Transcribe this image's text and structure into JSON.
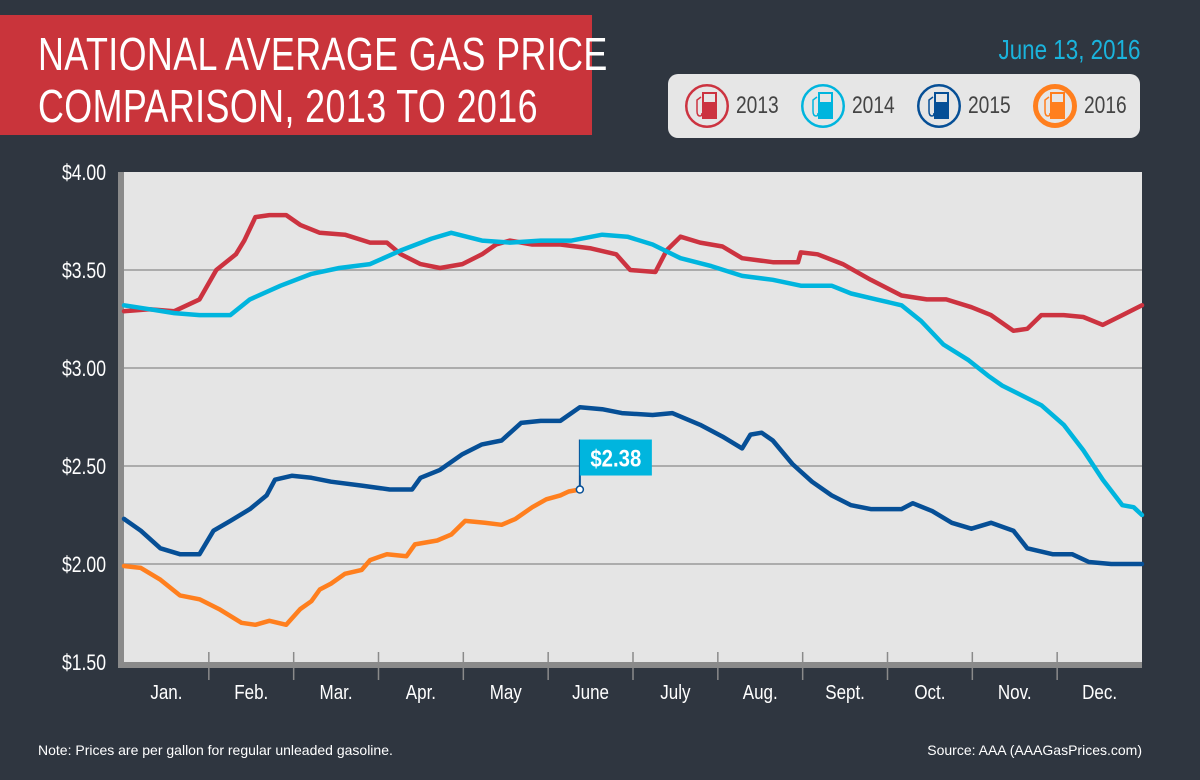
{
  "header": {
    "title_line1": "NATIONAL AVERAGE GAS PRICE",
    "title_line2": "COMPARISON, 2013 TO 2016",
    "date": "June 13, 2016"
  },
  "legend": [
    {
      "label": "2013",
      "color": "#cc3340",
      "icon": "gas-pump-icon"
    },
    {
      "label": "2014",
      "color": "#00b5de",
      "icon": "gas-pump-icon"
    },
    {
      "label": "2015",
      "color": "#064f96",
      "icon": "gas-pump-icon"
    },
    {
      "label": "2016",
      "color": "#ff7f1e",
      "icon": "gas-pump-icon"
    }
  ],
  "footer": {
    "note": "Note: Prices are per gallon for regular unleaded gasoline.",
    "source": "Source: AAA (AAAGasPrices.com)"
  },
  "chart_data": {
    "type": "line",
    "title": "NATIONAL AVERAGE GAS PRICE COMPARISON, 2013 TO 2016",
    "xlabel": "",
    "ylabel": "",
    "ylim": [
      1.5,
      4.0
    ],
    "yticks": [
      "$4.00",
      "$3.50",
      "$3.00",
      "$2.50",
      "$2.00",
      "$1.50"
    ],
    "ytick_values": [
      4.0,
      3.5,
      3.0,
      2.5,
      2.0,
      1.5
    ],
    "xticks": [
      "Jan.",
      "Feb.",
      "Mar.",
      "Apr.",
      "May",
      "June",
      "July",
      "Aug.",
      "Sept.",
      "Oct.",
      "Nov.",
      "Dec."
    ],
    "grid": "horizontal",
    "legend_position": "top-right",
    "annotation": {
      "series": "2016",
      "date": "06-13",
      "value": 2.38,
      "label": "$2.38",
      "color": "#00b5de"
    },
    "series": [
      {
        "name": "2013",
        "color": "#cc3340",
        "points": [
          [
            "01-01",
            3.29
          ],
          [
            "01-10",
            3.3
          ],
          [
            "01-19",
            3.29
          ],
          [
            "01-28",
            3.35
          ],
          [
            "02-03",
            3.5
          ],
          [
            "02-10",
            3.58
          ],
          [
            "02-13",
            3.65
          ],
          [
            "02-17",
            3.77
          ],
          [
            "02-22",
            3.78
          ],
          [
            "02-28",
            3.78
          ],
          [
            "03-05",
            3.73
          ],
          [
            "03-12",
            3.69
          ],
          [
            "03-21",
            3.68
          ],
          [
            "03-30",
            3.64
          ],
          [
            "04-05",
            3.64
          ],
          [
            "04-10",
            3.58
          ],
          [
            "04-17",
            3.53
          ],
          [
            "04-24",
            3.51
          ],
          [
            "05-02",
            3.53
          ],
          [
            "05-09",
            3.58
          ],
          [
            "05-14",
            3.63
          ],
          [
            "05-19",
            3.65
          ],
          [
            "05-27",
            3.63
          ],
          [
            "06-06",
            3.63
          ],
          [
            "06-17",
            3.61
          ],
          [
            "06-26",
            3.58
          ],
          [
            "07-01",
            3.5
          ],
          [
            "07-10",
            3.49
          ],
          [
            "07-14",
            3.6
          ],
          [
            "07-19",
            3.67
          ],
          [
            "07-26",
            3.64
          ],
          [
            "08-03",
            3.62
          ],
          [
            "08-10",
            3.56
          ],
          [
            "08-21",
            3.54
          ],
          [
            "08-30",
            3.54
          ],
          [
            "08-31",
            3.59
          ],
          [
            "09-06",
            3.58
          ],
          [
            "09-15",
            3.53
          ],
          [
            "09-25",
            3.45
          ],
          [
            "10-06",
            3.37
          ],
          [
            "10-15",
            3.35
          ],
          [
            "10-22",
            3.35
          ],
          [
            "10-31",
            3.31
          ],
          [
            "11-07",
            3.27
          ],
          [
            "11-15",
            3.19
          ],
          [
            "11-20",
            3.2
          ],
          [
            "11-25",
            3.27
          ],
          [
            "12-03",
            3.27
          ],
          [
            "12-10",
            3.26
          ],
          [
            "12-17",
            3.22
          ],
          [
            "12-24",
            3.27
          ],
          [
            "12-31",
            3.32
          ]
        ]
      },
      {
        "name": "2014",
        "color": "#00b5de",
        "points": [
          [
            "01-01",
            3.32
          ],
          [
            "01-10",
            3.3
          ],
          [
            "01-19",
            3.28
          ],
          [
            "01-28",
            3.27
          ],
          [
            "02-08",
            3.27
          ],
          [
            "02-15",
            3.35
          ],
          [
            "02-26",
            3.42
          ],
          [
            "03-09",
            3.48
          ],
          [
            "03-19",
            3.51
          ],
          [
            "03-30",
            3.53
          ],
          [
            "04-10",
            3.6
          ],
          [
            "04-21",
            3.66
          ],
          [
            "04-28",
            3.69
          ],
          [
            "05-09",
            3.65
          ],
          [
            "05-19",
            3.64
          ],
          [
            "05-30",
            3.65
          ],
          [
            "06-10",
            3.65
          ],
          [
            "06-21",
            3.68
          ],
          [
            "06-30",
            3.67
          ],
          [
            "07-09",
            3.63
          ],
          [
            "07-19",
            3.56
          ],
          [
            "07-30",
            3.52
          ],
          [
            "08-10",
            3.47
          ],
          [
            "08-21",
            3.45
          ],
          [
            "08-31",
            3.42
          ],
          [
            "09-11",
            3.42
          ],
          [
            "09-18",
            3.38
          ],
          [
            "09-27",
            3.35
          ],
          [
            "10-06",
            3.32
          ],
          [
            "10-13",
            3.24
          ],
          [
            "10-21",
            3.12
          ],
          [
            "10-30",
            3.04
          ],
          [
            "11-06",
            2.96
          ],
          [
            "11-11",
            2.91
          ],
          [
            "11-18",
            2.86
          ],
          [
            "11-25",
            2.81
          ],
          [
            "12-03",
            2.71
          ],
          [
            "12-10",
            2.58
          ],
          [
            "12-17",
            2.43
          ],
          [
            "12-24",
            2.3
          ],
          [
            "12-28",
            2.29
          ],
          [
            "12-31",
            2.25
          ]
        ]
      },
      {
        "name": "2015",
        "color": "#064f96",
        "points": [
          [
            "01-01",
            2.23
          ],
          [
            "01-07",
            2.17
          ],
          [
            "01-14",
            2.08
          ],
          [
            "01-21",
            2.05
          ],
          [
            "01-28",
            2.05
          ],
          [
            "02-02",
            2.17
          ],
          [
            "02-08",
            2.22
          ],
          [
            "02-15",
            2.28
          ],
          [
            "02-21",
            2.35
          ],
          [
            "02-24",
            2.43
          ],
          [
            "03-02",
            2.45
          ],
          [
            "03-09",
            2.44
          ],
          [
            "03-16",
            2.42
          ],
          [
            "03-27",
            2.4
          ],
          [
            "04-06",
            2.38
          ],
          [
            "04-14",
            2.38
          ],
          [
            "04-17",
            2.44
          ],
          [
            "04-24",
            2.48
          ],
          [
            "05-02",
            2.56
          ],
          [
            "05-09",
            2.61
          ],
          [
            "05-16",
            2.63
          ],
          [
            "05-23",
            2.72
          ],
          [
            "05-30",
            2.73
          ],
          [
            "06-06",
            2.73
          ],
          [
            "06-13",
            2.8
          ],
          [
            "06-21",
            2.79
          ],
          [
            "06-28",
            2.77
          ],
          [
            "07-09",
            2.76
          ],
          [
            "07-16",
            2.77
          ],
          [
            "07-26",
            2.71
          ],
          [
            "08-03",
            2.65
          ],
          [
            "08-10",
            2.59
          ],
          [
            "08-13",
            2.66
          ],
          [
            "08-17",
            2.67
          ],
          [
            "08-21",
            2.63
          ],
          [
            "08-28",
            2.51
          ],
          [
            "09-04",
            2.42
          ],
          [
            "09-11",
            2.35
          ],
          [
            "09-18",
            2.3
          ],
          [
            "09-25",
            2.28
          ],
          [
            "10-06",
            2.28
          ],
          [
            "10-10",
            2.31
          ],
          [
            "10-17",
            2.27
          ],
          [
            "10-24",
            2.21
          ],
          [
            "10-31",
            2.18
          ],
          [
            "11-07",
            2.21
          ],
          [
            "11-15",
            2.17
          ],
          [
            "11-20",
            2.08
          ],
          [
            "11-29",
            2.05
          ],
          [
            "12-06",
            2.05
          ],
          [
            "12-12",
            2.01
          ],
          [
            "12-20",
            2.0
          ],
          [
            "12-31",
            2.0
          ]
        ]
      },
      {
        "name": "2016",
        "color": "#ff7f1e",
        "points": [
          [
            "01-01",
            1.99
          ],
          [
            "01-07",
            1.98
          ],
          [
            "01-14",
            1.92
          ],
          [
            "01-21",
            1.84
          ],
          [
            "01-28",
            1.82
          ],
          [
            "02-04",
            1.77
          ],
          [
            "02-12",
            1.7
          ],
          [
            "02-17",
            1.69
          ],
          [
            "02-22",
            1.71
          ],
          [
            "02-28",
            1.69
          ],
          [
            "03-05",
            1.77
          ],
          [
            "03-09",
            1.81
          ],
          [
            "03-12",
            1.87
          ],
          [
            "03-16",
            1.9
          ],
          [
            "03-21",
            1.95
          ],
          [
            "03-27",
            1.97
          ],
          [
            "03-30",
            2.02
          ],
          [
            "04-05",
            2.05
          ],
          [
            "04-12",
            2.04
          ],
          [
            "04-15",
            2.1
          ],
          [
            "04-23",
            2.12
          ],
          [
            "04-28",
            2.15
          ],
          [
            "05-03",
            2.22
          ],
          [
            "05-10",
            2.21
          ],
          [
            "05-16",
            2.2
          ],
          [
            "05-21",
            2.23
          ],
          [
            "05-27",
            2.29
          ],
          [
            "06-01",
            2.33
          ],
          [
            "06-06",
            2.35
          ],
          [
            "06-09",
            2.37
          ],
          [
            "06-13",
            2.38
          ]
        ]
      }
    ]
  }
}
